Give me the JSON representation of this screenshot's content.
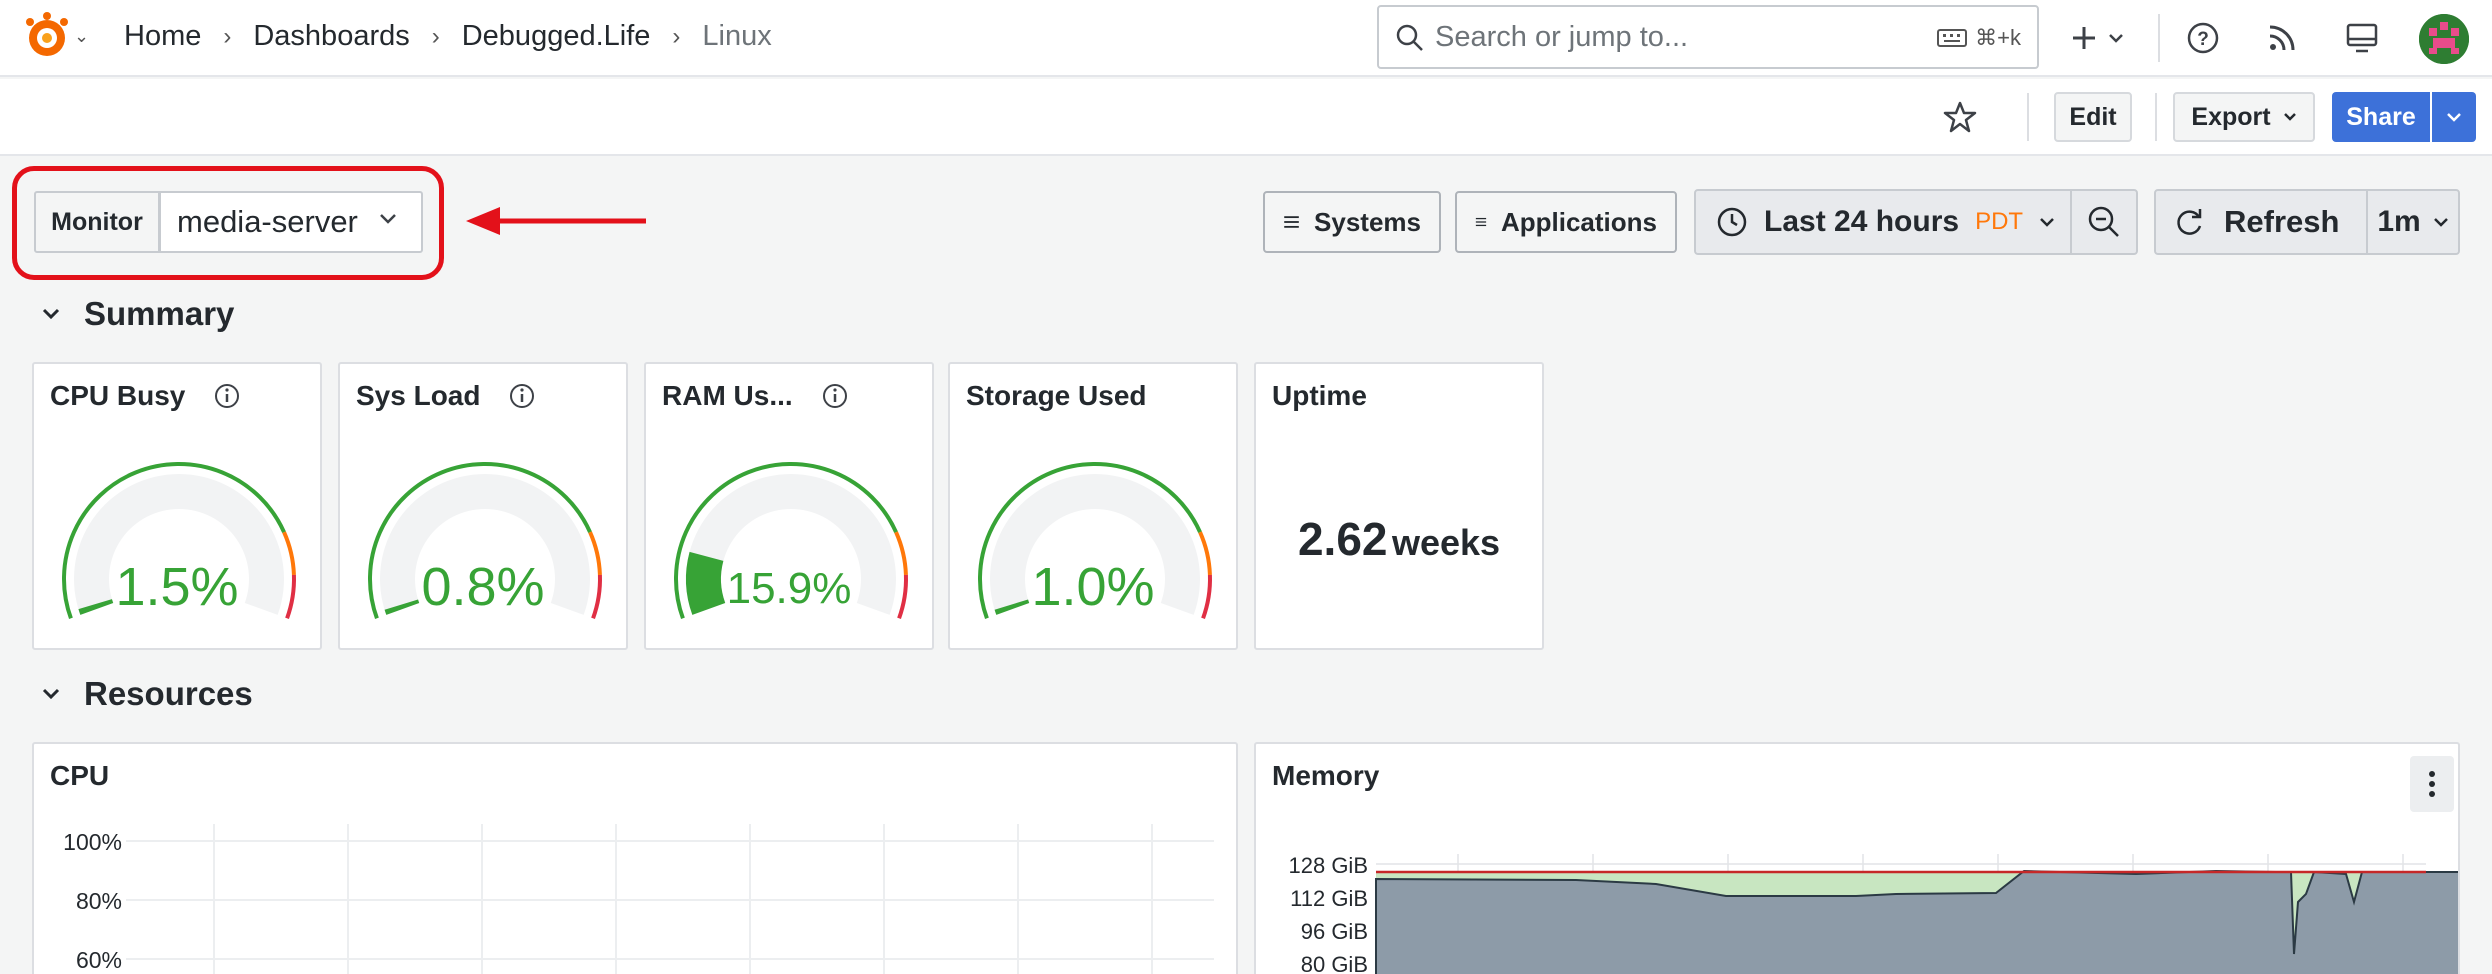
{
  "breadcrumbs": [
    "Home",
    "Dashboards",
    "Debugged.Life",
    "Linux"
  ],
  "search": {
    "placeholder": "Search or jump to...",
    "shortcut": "⌘+k"
  },
  "toolbar": {
    "edit": "Edit",
    "export": "Export",
    "share": "Share"
  },
  "variable": {
    "label": "Monitor",
    "value": "media-server"
  },
  "links": {
    "systems": "Systems",
    "applications": "Applications"
  },
  "time": {
    "range": "Last 24 hours",
    "tz": "PDT"
  },
  "refresh": {
    "label": "Refresh",
    "interval": "1m"
  },
  "rows": {
    "summary": "Summary",
    "resources": "Resources"
  },
  "summary": {
    "cpu": {
      "title": "CPU Busy",
      "value": "1.5%",
      "fraction": 0.015
    },
    "load": {
      "title": "Sys Load",
      "value": "0.8%",
      "fraction": 0.008
    },
    "ram": {
      "title": "RAM Us...",
      "value": "15.9%",
      "fraction": 0.159
    },
    "storage": {
      "title": "Storage Used",
      "value": "1.0%",
      "fraction": 0.01
    },
    "uptime": {
      "title": "Uptime",
      "value": "2.62",
      "unit": "weeks"
    }
  },
  "cpu_panel": {
    "title": "CPU",
    "y_ticks": [
      "100%",
      "80%",
      "60%"
    ]
  },
  "memory_panel": {
    "title": "Memory",
    "y_ticks": [
      "128 GiB",
      "112 GiB",
      "96 GiB",
      "80 GiB"
    ]
  },
  "colors": {
    "green": "#37a336",
    "orange": "#ff780a",
    "red": "#e02f44",
    "primary": "#3d71d9",
    "highlight": "#e3111a"
  }
}
